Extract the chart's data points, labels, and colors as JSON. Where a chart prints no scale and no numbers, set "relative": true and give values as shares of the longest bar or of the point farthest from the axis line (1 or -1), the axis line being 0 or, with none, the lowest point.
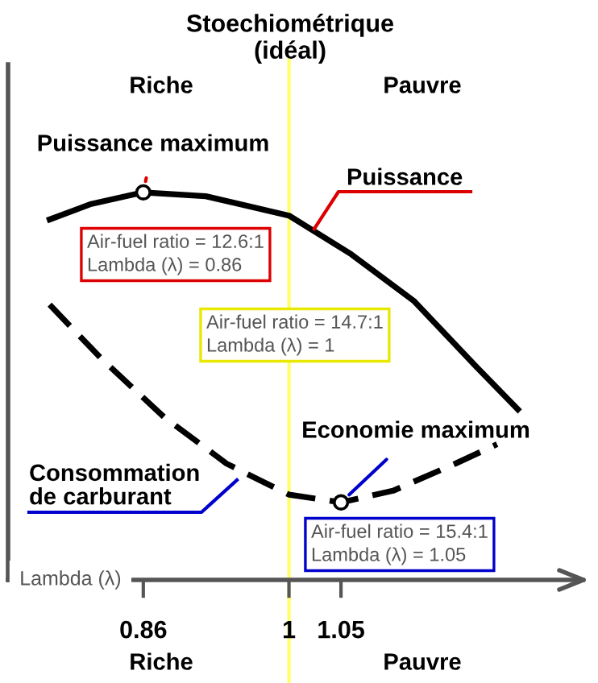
{
  "chart_data": {
    "type": "line",
    "relative": true,
    "xlabel": "Lambda (λ)",
    "xlim": [
      0.73,
      1.28
    ],
    "xticks": [
      0.86,
      1,
      1.05
    ],
    "series": [
      {
        "name": "Puissance",
        "color": "#000000",
        "line_style": "solid",
        "x": [
          0.77,
          0.81,
          0.86,
          0.92,
          1.0,
          1.06,
          1.12,
          1.18,
          1.22
        ],
        "values": [
          0.93,
          0.97,
          1.0,
          0.99,
          0.94,
          0.84,
          0.72,
          0.55,
          0.44
        ]
      },
      {
        "name": "Consommation de carburant",
        "color": "#000000",
        "line_style": "dashed",
        "x": [
          0.77,
          0.82,
          0.88,
          0.94,
          1.0,
          1.05,
          1.1,
          1.16,
          1.2
        ],
        "values": [
          0.71,
          0.57,
          0.42,
          0.3,
          0.22,
          0.2,
          0.23,
          0.3,
          0.35
        ]
      }
    ],
    "ref_lines": [
      {
        "axis": "x",
        "value": 1,
        "label": "Stoechiométrique\n(idéal)",
        "color": "#ffff66"
      }
    ],
    "annotations": [
      "Riche",
      "Pauvre",
      "Riche",
      "Pauvre",
      {
        "text": "Puissance maximum",
        "x": 0.86,
        "y": 1.0
      },
      {
        "text": "Economie maximum",
        "x": 1.05,
        "y": 0.2
      },
      "Air-fuel ratio = 12.6:1\nLambda (λ) = 0.86",
      "Air-fuel ratio = 14.7:1\nLambda (λ) = 1",
      "Air-fuel ratio = 15.4:1\nLambda (λ) = 1.05"
    ],
    "grid": false
  }
}
